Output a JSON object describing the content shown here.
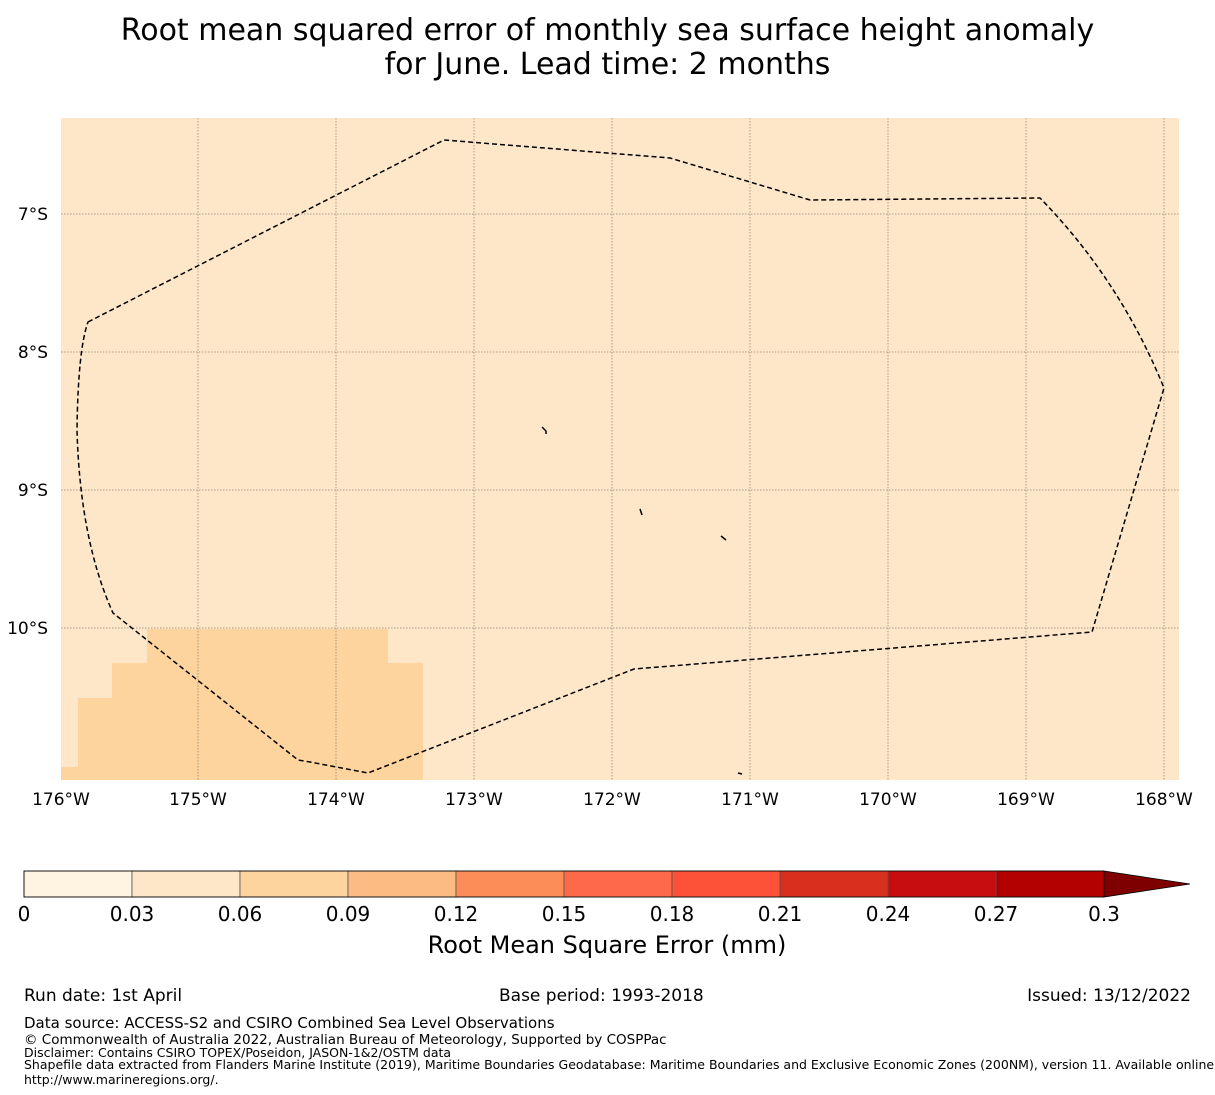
{
  "title": {
    "line1": "Root mean squared error of monthly sea surface height anomaly",
    "line2": "for June. Lead time: 2 months"
  },
  "map": {
    "lon_ticks": [
      "176°W",
      "175°W",
      "174°W",
      "173°W",
      "172°W",
      "171°W",
      "170°W",
      "169°W",
      "168°W"
    ],
    "lat_ticks": [
      "7°S",
      "8°S",
      "9°S",
      "10°S"
    ],
    "background_color": "#fee6c8",
    "higher_error_color": "#fdd49e",
    "boundary_style": "dashed",
    "gridlines": true
  },
  "colorbar": {
    "ticks": [
      "0",
      "0.03",
      "0.06",
      "0.09",
      "0.12",
      "0.15",
      "0.18",
      "0.21",
      "0.24",
      "0.27",
      "0.3"
    ],
    "colors": [
      "#fff3e1",
      "#fee6c8",
      "#fdd49e",
      "#fdbb84",
      "#fc8d59",
      "#fd6a4a",
      "#fd5138",
      "#d7301f",
      "#c80d10",
      "#b30000",
      "#7f0000"
    ],
    "extend": "max",
    "label": "Root Mean Square Error (mm)"
  },
  "footer": {
    "run_date": "Run date: 1st April",
    "base_period": "Base period: 1993-2018",
    "issued": "Issued: 13/12/2022",
    "data_source": "Data source: ACCESS-S2 and CSIRO Combined Sea Level Observations",
    "copyright": "© Commonwealth of Australia 2022, Australian Bureau of Meteorology, Supported by COSPPac",
    "disclaimer": "Disclaimer: Contains CSIRO TOPEX/Poseidon, JASON-1&2/OSTM data",
    "shapefile_line1": "Shapefile data extracted from Flanders Marine Institute (2019), Maritime Boundaries Geodatabase: Maritime Boundaries and Exclusive Economic Zones (200NM), version 11. Available online at",
    "shapefile_line2": "http://www.marineregions.org/."
  }
}
